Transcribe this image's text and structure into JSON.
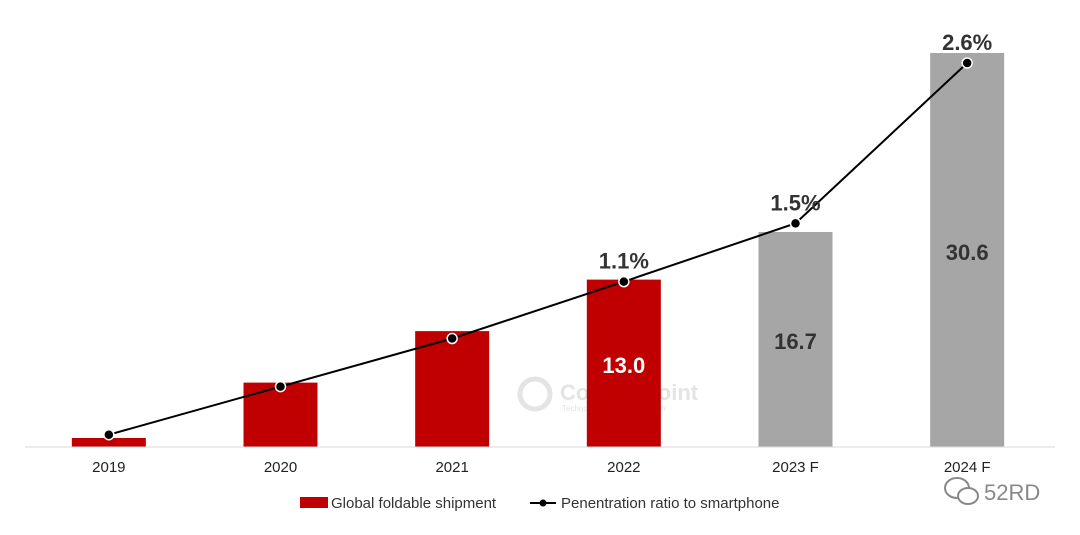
{
  "chart_data": {
    "type": "bar",
    "categories": [
      "2019",
      "2020",
      "2021",
      "2022",
      "2023 F",
      "2024 F"
    ],
    "series": [
      {
        "name": "Global foldable shipment",
        "type": "bar",
        "values": [
          0.7,
          5.0,
          9.0,
          13.0,
          16.7,
          30.6
        ],
        "value_labels": [
          "",
          "",
          "",
          "13.0",
          "16.7",
          "30.6"
        ],
        "bar_colors": [
          "#c00000",
          "#c00000",
          "#c00000",
          "#c00000",
          "#a6a6a6",
          "#a6a6a6"
        ]
      },
      {
        "name": "Penentration ratio to smartphone",
        "type": "line",
        "unit": "%",
        "values": [
          0.05,
          0.38,
          0.71,
          1.1,
          1.5,
          2.6
        ],
        "value_labels": [
          "",
          "",
          "",
          "1.1%",
          "1.5%",
          "2.6%"
        ]
      }
    ],
    "ylim": [
      0,
      30.6
    ],
    "y2lim": [
      0,
      2.6
    ],
    "grid": false,
    "legend_position": "bottom"
  },
  "watermark": {
    "text": "Counterpoint",
    "subtext": "Technology Market Research"
  },
  "brand_badge": {
    "icon": "wechat-icon",
    "text": "52RD"
  },
  "colors": {
    "actual": "#c00000",
    "forecast": "#a6a6a6",
    "line": "#000000",
    "marker": "#000000"
  }
}
